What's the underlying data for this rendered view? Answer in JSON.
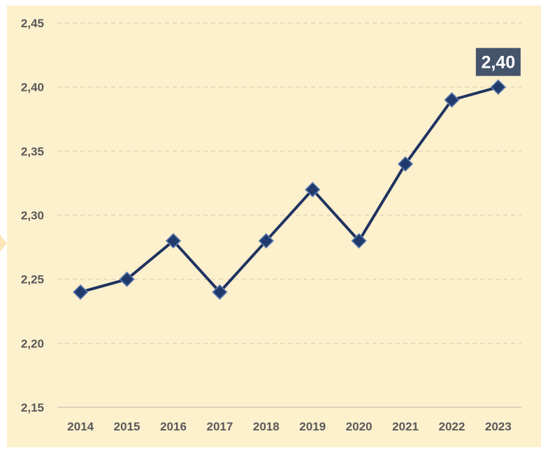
{
  "chart_data": {
    "type": "line",
    "categories": [
      "2014",
      "2015",
      "2016",
      "2017",
      "2018",
      "2019",
      "2020",
      "2021",
      "2022",
      "2023"
    ],
    "values": [
      2.24,
      2.25,
      2.28,
      2.24,
      2.28,
      2.32,
      2.28,
      2.34,
      2.39,
      2.4
    ],
    "y_ticks": [
      "2,15",
      "2,20",
      "2,25",
      "2,30",
      "2,35",
      "2,40",
      "2,45"
    ],
    "ylim": [
      2.15,
      2.45
    ],
    "grid": true,
    "highlight_label": "2,40",
    "colors": {
      "background": "#fdf0cd",
      "line": "#1f3360",
      "marker": "#1f3a6b",
      "marker_edge": "#5d7ab0",
      "callout": "#44546a",
      "gridline": "#d9cfb6"
    }
  }
}
